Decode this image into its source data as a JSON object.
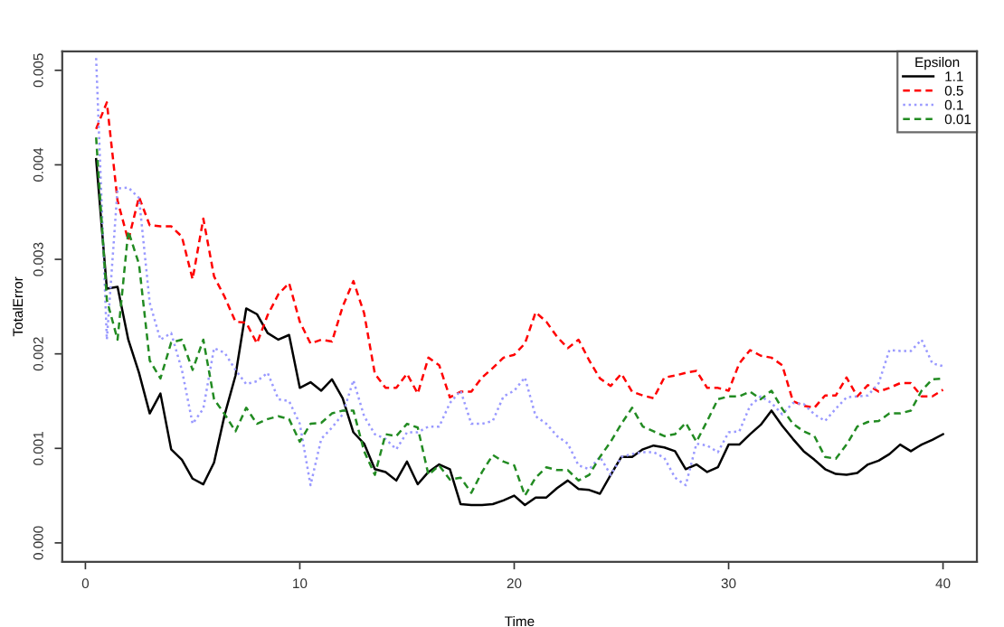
{
  "chart_data": {
    "type": "line",
    "xlabel": "Time",
    "ylabel": "TotalError",
    "legend_title": "Epsilon",
    "legend": "top right",
    "grid": false,
    "marker": "none",
    "xlim": [
      -1.08,
      41.58
    ],
    "ylim": [
      -0.0002,
      0.0052
    ],
    "xticks": [
      0,
      10,
      20,
      30,
      40
    ],
    "yticks": [
      {
        "value": 0,
        "label": "0.000"
      },
      {
        "value": 0.001,
        "label": "0.001"
      },
      {
        "value": 0.002,
        "label": "0.002"
      },
      {
        "value": 0.003,
        "label": "0.003"
      },
      {
        "value": 0.004,
        "label": "0.004"
      },
      {
        "value": 0.005,
        "label": "0.005"
      }
    ],
    "x": [
      0.5,
      1,
      1.5,
      2,
      2.5,
      3,
      3.5,
      4,
      4.5,
      5,
      5.5,
      6,
      6.5,
      7,
      7.5,
      8,
      8.5,
      9,
      9.5,
      10,
      10.5,
      11,
      11.5,
      12,
      12.5,
      13,
      13.5,
      14,
      14.5,
      15,
      15.5,
      16,
      16.5,
      17,
      17.5,
      18,
      18.5,
      19,
      19.5,
      20,
      20.5,
      21,
      21.5,
      22,
      22.5,
      23,
      23.5,
      24,
      24.5,
      25,
      25.5,
      26,
      26.5,
      27,
      27.5,
      28,
      28.5,
      29,
      29.5,
      30,
      30.5,
      31,
      31.5,
      32,
      32.5,
      33,
      33.5,
      34,
      34.5,
      35,
      35.5,
      36,
      36.5,
      37,
      37.5,
      38,
      38.5,
      39,
      39.5,
      40
    ],
    "series": [
      {
        "name": "1.1",
        "color": "#000000",
        "line_style": "solid",
        "values": [
          0.00406,
          0.00269,
          0.00271,
          0.00215,
          0.0018,
          0.00137,
          0.00158,
          0.00099,
          0.00088,
          0.00068,
          0.00062,
          0.00085,
          0.00136,
          0.00177,
          0.00248,
          0.00242,
          0.00222,
          0.00215,
          0.0022,
          0.00164,
          0.0017,
          0.00161,
          0.00173,
          0.00153,
          0.00117,
          0.00105,
          0.00078,
          0.00075,
          0.00066,
          0.00086,
          0.00062,
          0.00075,
          0.00083,
          0.00078,
          0.00041,
          0.0004,
          0.0004,
          0.00041,
          0.00045,
          0.0005,
          0.0004,
          0.00048,
          0.00048,
          0.00058,
          0.00066,
          0.00057,
          0.00056,
          0.00052,
          0.00072,
          0.00091,
          0.00091,
          0.00099,
          0.00103,
          0.00101,
          0.00097,
          0.00078,
          0.00083,
          0.00075,
          0.0008,
          0.00104,
          0.00104,
          0.00115,
          0.00125,
          0.0014,
          0.00124,
          0.0011,
          0.00097,
          0.00088,
          0.00078,
          0.00073,
          0.00072,
          0.00074,
          0.00083,
          0.00087,
          0.00094,
          0.00104,
          0.00097,
          0.00104,
          0.00109,
          0.00115
        ]
      },
      {
        "name": "0.5",
        "color": "#ff0000",
        "line_style": "dashed",
        "values": [
          0.00438,
          0.00466,
          0.00362,
          0.0032,
          0.00366,
          0.00336,
          0.00335,
          0.00335,
          0.00324,
          0.00279,
          0.00343,
          0.00282,
          0.0026,
          0.00234,
          0.00233,
          0.00211,
          0.00241,
          0.00263,
          0.00275,
          0.00234,
          0.00211,
          0.00215,
          0.00213,
          0.0025,
          0.00277,
          0.00243,
          0.00179,
          0.00164,
          0.00164,
          0.00179,
          0.00158,
          0.00196,
          0.00188,
          0.00154,
          0.0016,
          0.0016,
          0.00175,
          0.00185,
          0.00196,
          0.00199,
          0.00211,
          0.00244,
          0.00234,
          0.00218,
          0.00206,
          0.00215,
          0.00193,
          0.00174,
          0.00166,
          0.00179,
          0.0016,
          0.00156,
          0.00153,
          0.00175,
          0.00177,
          0.0018,
          0.00182,
          0.00164,
          0.00164,
          0.00161,
          0.0019,
          0.00204,
          0.00198,
          0.00196,
          0.00188,
          0.0015,
          0.00145,
          0.00143,
          0.00156,
          0.00156,
          0.00175,
          0.00155,
          0.00167,
          0.0016,
          0.00164,
          0.00169,
          0.00169,
          0.00155,
          0.00155,
          0.00162
        ]
      },
      {
        "name": "0.1",
        "color": "#9999ff",
        "line_style": "dotted",
        "values": [
          0.00513,
          0.00215,
          0.00375,
          0.00376,
          0.00365,
          0.00254,
          0.00215,
          0.00222,
          0.00183,
          0.00126,
          0.00142,
          0.00206,
          0.00201,
          0.00183,
          0.00168,
          0.00171,
          0.0018,
          0.00152,
          0.0015,
          0.00126,
          0.00061,
          0.0011,
          0.00122,
          0.00136,
          0.00172,
          0.00134,
          0.00115,
          0.0011,
          0.00099,
          0.00117,
          0.00117,
          0.00123,
          0.00123,
          0.00148,
          0.00161,
          0.00126,
          0.00126,
          0.00129,
          0.00155,
          0.00161,
          0.00175,
          0.00134,
          0.00126,
          0.00113,
          0.00105,
          0.00082,
          0.00078,
          0.00091,
          0.00072,
          0.00091,
          0.00094,
          0.00096,
          0.00096,
          0.0009,
          0.00069,
          0.00061,
          0.00105,
          0.00103,
          0.00096,
          0.00117,
          0.00118,
          0.00145,
          0.00155,
          0.00148,
          0.00136,
          0.00148,
          0.00147,
          0.00136,
          0.00129,
          0.00142,
          0.00154,
          0.00155,
          0.00156,
          0.00169,
          0.00204,
          0.00203,
          0.00203,
          0.00215,
          0.0019,
          0.00187
        ]
      },
      {
        "name": "0.01",
        "color": "#228b22",
        "line_style": "dashed",
        "values": [
          0.00429,
          0.00257,
          0.00215,
          0.0033,
          0.00295,
          0.00193,
          0.00174,
          0.00212,
          0.00215,
          0.00183,
          0.00215,
          0.00152,
          0.00136,
          0.00118,
          0.00143,
          0.00126,
          0.00131,
          0.00134,
          0.00131,
          0.00107,
          0.00126,
          0.00127,
          0.00137,
          0.0014,
          0.0014,
          0.00097,
          0.00072,
          0.00115,
          0.00113,
          0.00126,
          0.00122,
          0.00072,
          0.00082,
          0.00067,
          0.00069,
          0.00053,
          0.00075,
          0.00093,
          0.00086,
          0.00082,
          0.0005,
          0.00069,
          0.0008,
          0.00077,
          0.00077,
          0.00066,
          0.00072,
          0.00091,
          0.00107,
          0.00126,
          0.00143,
          0.00123,
          0.00118,
          0.00113,
          0.00115,
          0.00127,
          0.00107,
          0.00129,
          0.00152,
          0.00155,
          0.00155,
          0.0016,
          0.00152,
          0.00161,
          0.00142,
          0.00126,
          0.00118,
          0.00113,
          0.00091,
          0.00089,
          0.00104,
          0.00123,
          0.00128,
          0.00129,
          0.00137,
          0.00137,
          0.0014,
          0.00161,
          0.00173,
          0.00174
        ]
      }
    ]
  }
}
